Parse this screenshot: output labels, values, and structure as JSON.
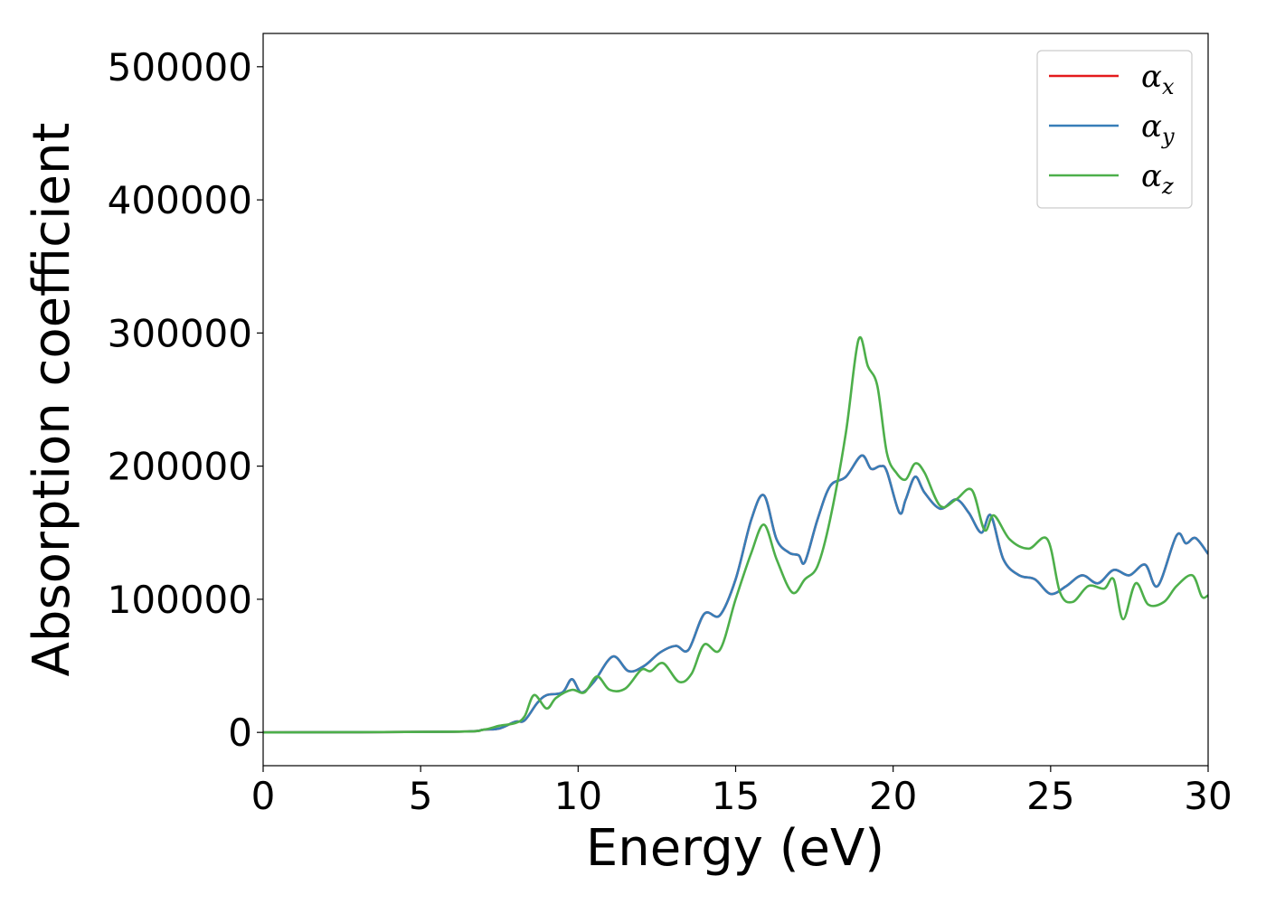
{
  "chart_data": {
    "type": "line",
    "xlabel": "Energy (eV)",
    "ylabel": "Absorption coefficient",
    "xlim": [
      0,
      30
    ],
    "ylim": [
      -25000,
      525000
    ],
    "xticks": [
      0,
      5,
      10,
      15,
      20,
      25,
      30
    ],
    "xtick_labels": [
      "0",
      "5",
      "10",
      "15",
      "20",
      "25",
      "30"
    ],
    "yticks": [
      0,
      100000,
      200000,
      300000,
      400000,
      500000
    ],
    "ytick_labels": [
      "0",
      "100000",
      "200000",
      "300000",
      "400000",
      "500000"
    ],
    "grid": false,
    "legend_position": "top-right",
    "series": [
      {
        "name": "x",
        "legend_base": "α",
        "color": "#e41a1c",
        "x": [
          0,
          6,
          7,
          7.5,
          8,
          8.3,
          8.7,
          9.0,
          9.5,
          9.8,
          10.1,
          10.5,
          11.1,
          11.6,
          12.1,
          12.6,
          13.1,
          13.5,
          14.0,
          14.5,
          15.0,
          15.5,
          15.9,
          16.3,
          16.7,
          17.0,
          17.2,
          17.6,
          18.0,
          18.5,
          19.0,
          19.3,
          19.6,
          19.8,
          20.2,
          20.4,
          20.7,
          21.0,
          21.5,
          22.0,
          22.4,
          22.8,
          23.1,
          23.5,
          24.0,
          24.5,
          25.0,
          25.5,
          26.0,
          26.5,
          27.0,
          27.5,
          28.0,
          28.4,
          29.0,
          29.3,
          29.6,
          30.0
        ],
        "y": [
          0,
          500,
          2000,
          3000,
          8000,
          9000,
          22000,
          28000,
          30000,
          40000,
          30000,
          38000,
          57000,
          46000,
          50000,
          60000,
          65000,
          62000,
          89000,
          88000,
          115000,
          160000,
          178000,
          145000,
          135000,
          133000,
          128000,
          160000,
          185000,
          192000,
          208000,
          198000,
          200000,
          196000,
          165000,
          175000,
          192000,
          180000,
          168000,
          175000,
          165000,
          150000,
          163000,
          130000,
          118000,
          115000,
          104000,
          110000,
          118000,
          112000,
          122000,
          118000,
          126000,
          110000,
          148000,
          142000,
          146000,
          134000
        ]
      },
      {
        "name": "y",
        "legend_base": "α",
        "color": "#377eb8",
        "x": [
          0,
          6,
          7,
          7.5,
          8,
          8.3,
          8.7,
          9.0,
          9.5,
          9.8,
          10.1,
          10.5,
          11.1,
          11.6,
          12.1,
          12.6,
          13.1,
          13.5,
          14.0,
          14.5,
          15.0,
          15.5,
          15.9,
          16.3,
          16.7,
          17.0,
          17.2,
          17.6,
          18.0,
          18.5,
          19.0,
          19.3,
          19.6,
          19.8,
          20.2,
          20.4,
          20.7,
          21.0,
          21.5,
          22.0,
          22.4,
          22.8,
          23.1,
          23.5,
          24.0,
          24.5,
          25.0,
          25.5,
          26.0,
          26.5,
          27.0,
          27.5,
          28.0,
          28.4,
          29.0,
          29.3,
          29.6,
          30.0
        ],
        "y": [
          0,
          500,
          2000,
          3000,
          8000,
          9000,
          22000,
          28000,
          30000,
          40000,
          30000,
          38000,
          57000,
          46000,
          50000,
          60000,
          65000,
          62000,
          89000,
          88000,
          115000,
          160000,
          178000,
          145000,
          135000,
          133000,
          128000,
          160000,
          185000,
          192000,
          208000,
          198000,
          200000,
          196000,
          165000,
          175000,
          192000,
          180000,
          168000,
          175000,
          165000,
          150000,
          163000,
          130000,
          118000,
          115000,
          104000,
          110000,
          118000,
          112000,
          122000,
          118000,
          126000,
          110000,
          148000,
          142000,
          146000,
          134000
        ]
      },
      {
        "name": "z",
        "legend_base": "α",
        "color": "#4daf4a",
        "x": [
          0,
          6,
          7,
          7.5,
          8,
          8.3,
          8.6,
          9.0,
          9.3,
          9.8,
          10.2,
          10.6,
          11.0,
          11.5,
          12.0,
          12.3,
          12.7,
          13.2,
          13.6,
          14.0,
          14.5,
          15.0,
          15.5,
          15.9,
          16.3,
          16.8,
          17.2,
          17.6,
          18.0,
          18.5,
          18.9,
          19.2,
          19.5,
          19.8,
          20.1,
          20.4,
          20.7,
          21.0,
          21.5,
          22.0,
          22.5,
          22.9,
          23.2,
          23.7,
          24.3,
          24.9,
          25.3,
          25.7,
          26.2,
          26.7,
          27.0,
          27.3,
          27.7,
          28.1,
          28.6,
          29.0,
          29.5,
          29.8,
          30.0
        ],
        "y": [
          0,
          500,
          2000,
          5000,
          7000,
          12000,
          28000,
          18000,
          26000,
          32000,
          30000,
          42000,
          32000,
          33000,
          47000,
          46000,
          52000,
          38000,
          44000,
          66000,
          62000,
          100000,
          135000,
          156000,
          130000,
          105000,
          115000,
          125000,
          160000,
          225000,
          295000,
          275000,
          260000,
          210000,
          195000,
          190000,
          202000,
          195000,
          170000,
          175000,
          182000,
          152000,
          163000,
          145000,
          138000,
          145000,
          105000,
          98000,
          110000,
          108000,
          115000,
          85000,
          112000,
          96000,
          98000,
          110000,
          118000,
          102000,
          103000
        ]
      }
    ]
  }
}
